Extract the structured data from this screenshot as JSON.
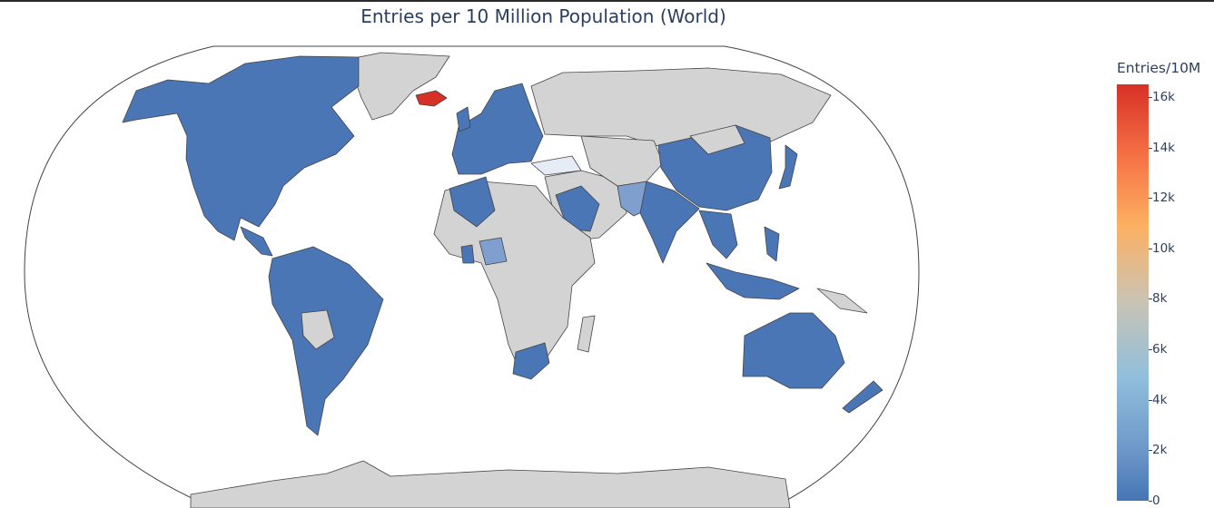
{
  "title": "Entries per 10 Million Population (World)",
  "colorbar": {
    "title": "Entries/10M",
    "ticks": [
      "16k",
      "14k",
      "12k",
      "10k",
      "8k",
      "6k",
      "4k",
      "2k",
      "0"
    ],
    "tick_values": [
      16000,
      14000,
      12000,
      10000,
      8000,
      6000,
      4000,
      2000,
      0
    ],
    "range": [
      0,
      16500
    ],
    "colorscale": [
      "#4575b4",
      "#91bfdb",
      "#fdb062",
      "#d73027"
    ]
  },
  "colors": {
    "no_data": "#d3d3d3",
    "low": "#4a76b6",
    "mid_low": "#7f9fcf",
    "light": "#e6ecf6",
    "high": "#d73027",
    "border": "#444444"
  },
  "chart_data": {
    "type": "choropleth",
    "projection": "natural-earth",
    "value_label": "Entries/10M",
    "notable_regions": [
      {
        "region": "Iceland",
        "level": "high",
        "approx_value": 16500
      },
      {
        "region": "Pakistan",
        "level": "mid-low",
        "approx_value": 2500
      },
      {
        "region": "Nigeria",
        "level": "mid-low",
        "approx_value": 3500
      },
      {
        "region": "Turkey",
        "level": "very-low",
        "approx_value": 200
      },
      {
        "region": "Americas, Western Europe, India, China, SE Asia, Australia",
        "level": "low",
        "approx_value": 500
      },
      {
        "region": "Russia, Africa (most), Middle East (part), Antarctica",
        "level": "no data"
      }
    ]
  }
}
